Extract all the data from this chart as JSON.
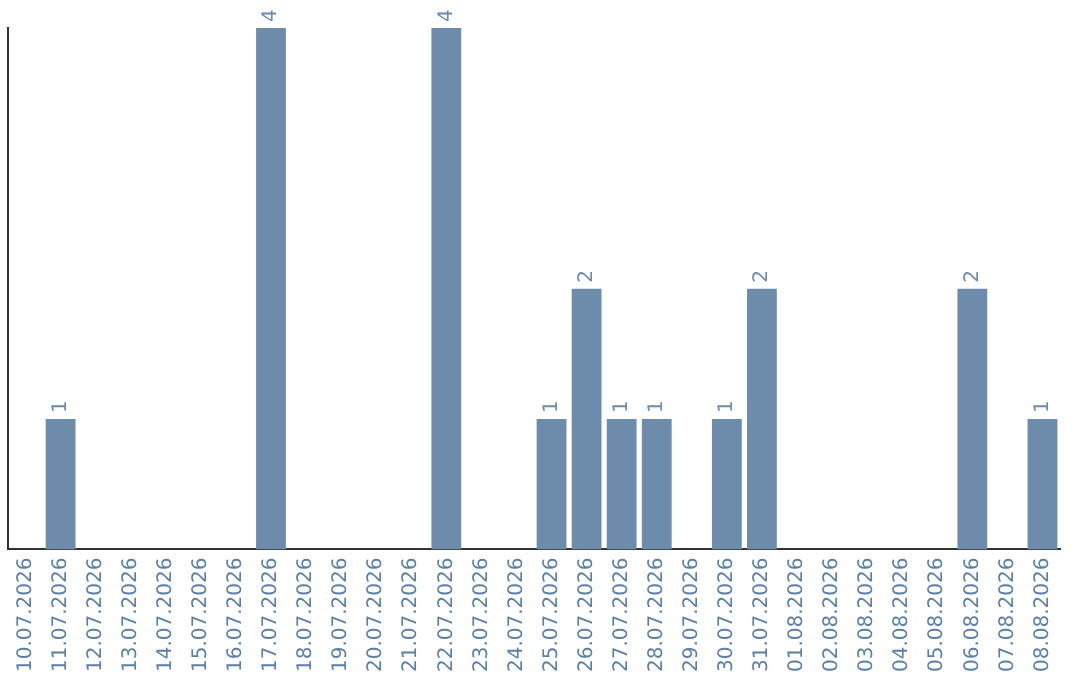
{
  "chart_data": {
    "type": "bar",
    "categories": [
      "10.07.2026",
      "11.07.2026",
      "12.07.2026",
      "13.07.2026",
      "14.07.2026",
      "15.07.2026",
      "16.07.2026",
      "17.07.2026",
      "18.07.2026",
      "19.07.2026",
      "20.07.2026",
      "21.07.2026",
      "22.07.2026",
      "23.07.2026",
      "24.07.2026",
      "25.07.2026",
      "26.07.2026",
      "27.07.2026",
      "28.07.2026",
      "29.07.2026",
      "30.07.2026",
      "31.07.2026",
      "01.08.2026",
      "02.08.2026",
      "03.08.2026",
      "04.08.2026",
      "05.08.2026",
      "06.08.2026",
      "07.08.2026",
      "08.08.2026"
    ],
    "values": [
      0,
      1,
      0,
      0,
      0,
      0,
      0,
      4,
      0,
      0,
      0,
      0,
      4,
      0,
      0,
      1,
      2,
      1,
      1,
      0,
      1,
      2,
      0,
      0,
      0,
      0,
      0,
      2,
      0,
      1
    ],
    "value_labels": [
      null,
      "1",
      null,
      null,
      null,
      null,
      null,
      "4",
      null,
      null,
      null,
      null,
      "4",
      null,
      null,
      "1",
      "2",
      "1",
      "1",
      null,
      "1",
      "2",
      null,
      null,
      null,
      null,
      null,
      "2",
      null,
      "1"
    ],
    "color": "#6d8cab",
    "grid": false,
    "legend": false,
    "tick_labels": "x"
  }
}
